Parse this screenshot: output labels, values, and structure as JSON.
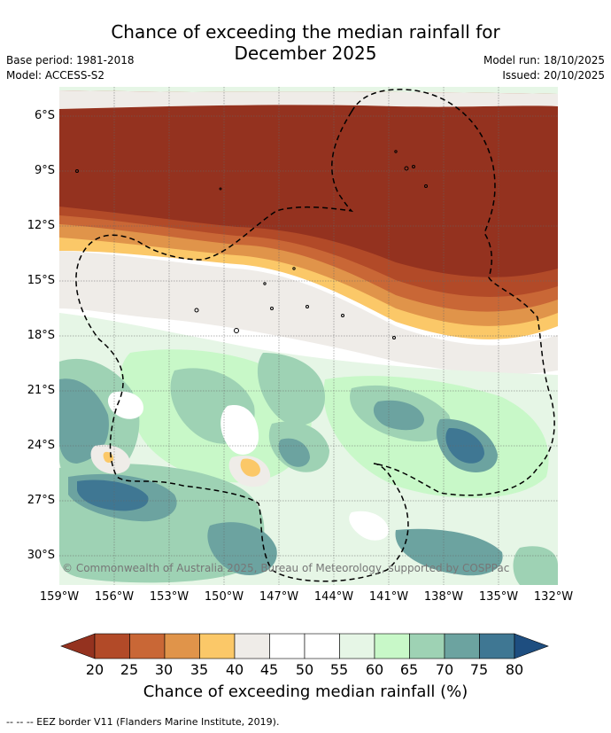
{
  "title_line1": "Chance of exceeding the median rainfall for",
  "title_line2": "December 2025",
  "base_period": "Base period: 1981-2018",
  "model": "Model: ACCESS-S2",
  "model_run": "Model run: 18/10/2025",
  "issued": "Issued: 20/10/2025",
  "copyright": "© Commonwealth of Australia 2025, Bureau of Meteorology, supported by COSPPac",
  "y_labels": [
    "6°S",
    "9°S",
    "12°S",
    "15°S",
    "18°S",
    "21°S",
    "24°S",
    "27°S",
    "30°S"
  ],
  "x_labels": [
    "159°W",
    "156°W",
    "153°W",
    "150°W",
    "147°W",
    "144°W",
    "141°W",
    "138°W",
    "135°W",
    "132°W"
  ],
  "colorbar": {
    "label": "Chance of exceeding median rainfall (%)",
    "ticks": [
      "20",
      "25",
      "30",
      "35",
      "40",
      "45",
      "50",
      "55",
      "60",
      "65",
      "70",
      "75",
      "80"
    ],
    "colors": [
      "#94321f",
      "#b24a28",
      "#c96736",
      "#e0944a",
      "#fbc868",
      "#efece8",
      "#ffffff",
      "#ffffff",
      "#e6f6e6",
      "#c8f8c8",
      "#9ed2b4",
      "#6ca3a0",
      "#3f7793",
      "#1e4e80"
    ]
  },
  "footer": "-- -- -- EEZ border V11 (Flanders Marine Institute, 2019)."
}
